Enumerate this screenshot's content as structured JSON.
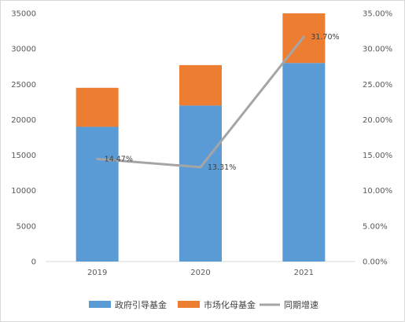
{
  "chart_data": {
    "type": "bar",
    "stacked": true,
    "categories": [
      "2019",
      "2020",
      "2021"
    ],
    "series": [
      {
        "name": "政府引导基金",
        "kind": "bar",
        "axis": "left",
        "color": "#5b9bd5",
        "values": [
          19000,
          22000,
          28000
        ]
      },
      {
        "name": "市场化母基金",
        "kind": "bar",
        "axis": "left",
        "color": "#ed7d31",
        "values": [
          5500,
          5700,
          7000
        ]
      },
      {
        "name": "同期增速",
        "kind": "line",
        "axis": "right",
        "color": "#a5a5a5",
        "values": [
          14.47,
          13.31,
          31.7
        ]
      }
    ],
    "data_labels": [
      "14.47%",
      "13.31%",
      "31.70%"
    ],
    "ylim": [
      0,
      35000
    ],
    "y_ticks": [
      "0",
      "5000",
      "10000",
      "15000",
      "20000",
      "25000",
      "30000",
      "35000"
    ],
    "y2lim": [
      0,
      35
    ],
    "y2_ticks": [
      "0.00%",
      "5.00%",
      "10.00%",
      "15.00%",
      "20.00%",
      "25.00%",
      "30.00%",
      "35.00%"
    ],
    "grid": false,
    "legend": "bottom"
  }
}
